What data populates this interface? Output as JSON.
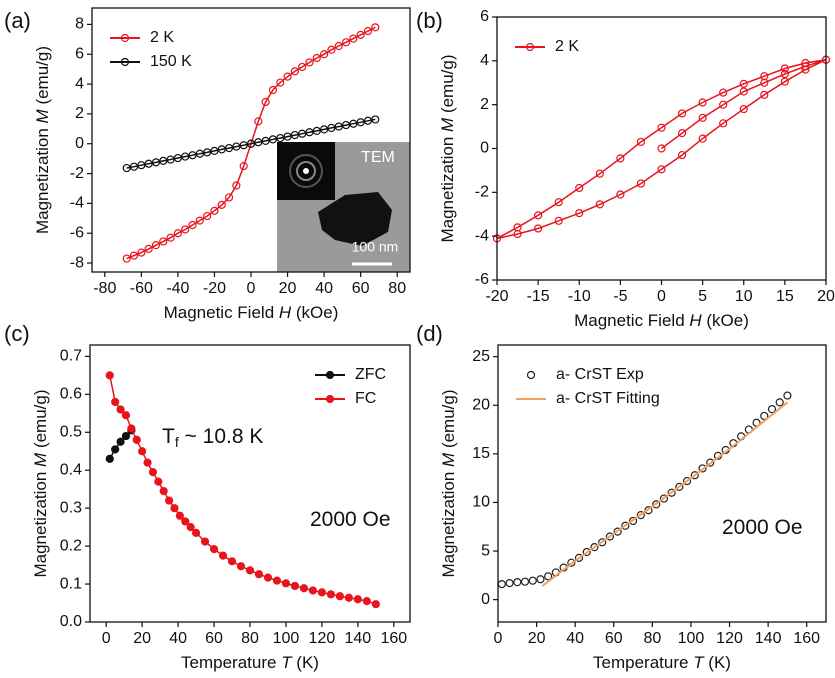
{
  "chart_data": [
    {
      "type": "line",
      "panel": "(a)",
      "xlabel": {
        "pre": "Magnetic Field ",
        "italic": "H",
        "post": " (kOe)"
      },
      "ylabel": {
        "pre": "Magnetization ",
        "italic": "M",
        "post": " (emu/g)"
      },
      "xlim": [
        -87,
        87
      ],
      "ylim": [
        -8.6,
        9.1
      ],
      "xticks": [
        -80,
        -60,
        -40,
        -20,
        0,
        20,
        40,
        60,
        80
      ],
      "yticks": [
        -8,
        -6,
        -4,
        -2,
        0,
        2,
        4,
        6,
        8
      ],
      "legend": "upper left",
      "inset_labels": [
        "TEM",
        "100 nm"
      ],
      "x": [
        -68,
        -64,
        -60,
        -56,
        -52,
        -48,
        -44,
        -40,
        -36,
        -32,
        -28,
        -24,
        -20,
        -16,
        -12,
        -8,
        -4,
        0,
        4,
        8,
        12,
        16,
        20,
        24,
        28,
        32,
        36,
        40,
        44,
        48,
        52,
        56,
        60,
        64,
        68
      ],
      "series": [
        {
          "name": "2 K",
          "color": "#e8141c",
          "marker": "open",
          "values": [
            -7.7,
            -7.5,
            -7.3,
            -7.05,
            -6.8,
            -6.55,
            -6.3,
            -6.0,
            -5.75,
            -5.45,
            -5.15,
            -4.85,
            -4.5,
            -4.1,
            -3.6,
            -2.8,
            -1.5,
            0,
            1.5,
            2.8,
            3.6,
            4.1,
            4.5,
            4.85,
            5.15,
            5.45,
            5.75,
            6.0,
            6.3,
            6.55,
            6.8,
            7.05,
            7.3,
            7.55,
            7.8
          ]
        },
        {
          "name": "150 K",
          "color": "#111111",
          "marker": "open",
          "values": [
            -1.63,
            -1.54,
            -1.44,
            -1.34,
            -1.25,
            -1.15,
            -1.06,
            -0.96,
            -0.86,
            -0.77,
            -0.67,
            -0.58,
            -0.48,
            -0.38,
            -0.29,
            -0.19,
            -0.1,
            0,
            0.1,
            0.19,
            0.29,
            0.38,
            0.48,
            0.58,
            0.67,
            0.77,
            0.86,
            0.96,
            1.06,
            1.15,
            1.25,
            1.34,
            1.44,
            1.54,
            1.63
          ]
        }
      ]
    },
    {
      "type": "line",
      "panel": "(b)",
      "xlabel": {
        "pre": "Magnetic Field ",
        "italic": "H",
        "post": " (kOe)"
      },
      "ylabel": {
        "pre": "Magnetization ",
        "italic": "M",
        "post": " (emu/g)"
      },
      "xlim": [
        -20,
        20
      ],
      "ylim": [
        -6,
        6
      ],
      "xticks": [
        -20,
        -15,
        -10,
        -5,
        0,
        5,
        10,
        15,
        20
      ],
      "yticks": [
        -6,
        -4,
        -2,
        0,
        2,
        4,
        6
      ],
      "legend": "upper left",
      "series": [
        {
          "name": "2 K",
          "color": "#e8141c",
          "marker": "open",
          "x": [
            0,
            2.5,
            5,
            7.5,
            10,
            12.5,
            15,
            17.5,
            20,
            17.5,
            15,
            12.5,
            10,
            7.5,
            5,
            2.5,
            0,
            -2.5,
            -5,
            -7.5,
            -10,
            -12.5,
            -15,
            -17.5,
            -20,
            -17.5,
            -15,
            -12.5,
            -10,
            -7.5,
            -5,
            -2.5,
            0,
            2.5,
            5,
            7.5,
            10,
            12.5,
            15,
            17.5,
            20
          ],
          "values": [
            0,
            0.7,
            1.4,
            2.0,
            2.6,
            3.0,
            3.4,
            3.75,
            4.05,
            3.9,
            3.65,
            3.3,
            2.95,
            2.55,
            2.1,
            1.6,
            0.95,
            0.3,
            -0.45,
            -1.15,
            -1.8,
            -2.45,
            -3.05,
            -3.6,
            -4.1,
            -3.9,
            -3.65,
            -3.3,
            -2.95,
            -2.55,
            -2.1,
            -1.6,
            -0.95,
            -0.3,
            0.45,
            1.15,
            1.8,
            2.45,
            3.05,
            3.6,
            4.05
          ]
        }
      ]
    },
    {
      "type": "line",
      "panel": "(c)",
      "xlabel": {
        "pre": "Temperature ",
        "italic": "T",
        "post": " (K)"
      },
      "ylabel": {
        "pre": "Magnetization ",
        "italic": "M",
        "post": " (emu/g)"
      },
      "xlim": [
        -9,
        169
      ],
      "ylim": [
        0,
        0.73
      ],
      "xticks": [
        0,
        20,
        40,
        60,
        80,
        100,
        120,
        140,
        160
      ],
      "yticks": [
        {
          "value": 0,
          "label": "0.0"
        },
        0.1,
        0.2,
        0.3,
        0.4,
        0.5,
        0.6,
        0.7
      ],
      "legend": "upper right",
      "annotations": [
        {
          "text": "T",
          "sub": "f",
          "post": " ~ 10.8 K"
        },
        {
          "text": "2000 Oe"
        }
      ],
      "series": [
        {
          "name": "ZFC",
          "color": "#111111",
          "marker": "filled",
          "x": [
            2,
            5,
            8,
            11,
            14
          ],
          "values": [
            0.43,
            0.455,
            0.475,
            0.49,
            0.505
          ]
        },
        {
          "name": "FC",
          "color": "#e8141c",
          "marker": "filled",
          "x": [
            2,
            5,
            8,
            11,
            14,
            17,
            20,
            23,
            26,
            29,
            32,
            35,
            38,
            41,
            44,
            47,
            50,
            55,
            60,
            65,
            70,
            75,
            80,
            85,
            90,
            95,
            100,
            105,
            110,
            115,
            120,
            125,
            130,
            135,
            140,
            145,
            150
          ],
          "values": [
            0.65,
            0.58,
            0.56,
            0.545,
            0.51,
            0.48,
            0.45,
            0.42,
            0.395,
            0.37,
            0.345,
            0.32,
            0.3,
            0.28,
            0.265,
            0.25,
            0.235,
            0.212,
            0.192,
            0.175,
            0.16,
            0.147,
            0.136,
            0.126,
            0.117,
            0.109,
            0.102,
            0.095,
            0.089,
            0.083,
            0.078,
            0.073,
            0.068,
            0.064,
            0.06,
            0.055,
            0.047
          ]
        }
      ]
    },
    {
      "type": "line",
      "panel": "(d)",
      "xlabel": {
        "pre": "Temperature ",
        "italic": "T",
        "post": " (K)"
      },
      "ylabel": {
        "pre": "Magnetization ",
        "italic": "M",
        "post": " (emu/g)"
      },
      "xlim": [
        0,
        170
      ],
      "ylim": [
        -2.3,
        26.2
      ],
      "xticks": [
        0,
        20,
        40,
        60,
        80,
        100,
        120,
        140,
        160
      ],
      "yticks": [
        0,
        5,
        10,
        15,
        20,
        25
      ],
      "legend": "upper left",
      "annotations": [
        {
          "text": "2000 Oe"
        }
      ],
      "series": [
        {
          "name": "a- CrST Exp",
          "color": "#222222",
          "marker": "open",
          "line": false,
          "x": [
            2,
            6,
            10,
            14,
            18,
            22,
            26,
            30,
            34,
            38,
            42,
            46,
            50,
            54,
            58,
            62,
            66,
            70,
            74,
            78,
            82,
            86,
            90,
            94,
            98,
            102,
            106,
            110,
            114,
            118,
            122,
            126,
            130,
            134,
            138,
            142,
            146,
            150
          ],
          "values": [
            1.6,
            1.7,
            1.8,
            1.85,
            1.95,
            2.1,
            2.4,
            2.8,
            3.3,
            3.8,
            4.3,
            4.9,
            5.4,
            5.9,
            6.5,
            7.0,
            7.6,
            8.1,
            8.7,
            9.2,
            9.8,
            10.4,
            11.0,
            11.6,
            12.2,
            12.8,
            13.5,
            14.1,
            14.8,
            15.4,
            16.1,
            16.8,
            17.5,
            18.2,
            18.9,
            19.6,
            20.3,
            21.0
          ]
        },
        {
          "name": "a- CrST Fitting",
          "color": "#f0a060",
          "marker": "none",
          "x": [
            23,
            40,
            60,
            80,
            100,
            120,
            150
          ],
          "values": [
            1.4,
            4.0,
            6.8,
            9.6,
            12.5,
            15.5,
            20.3
          ]
        }
      ]
    }
  ]
}
